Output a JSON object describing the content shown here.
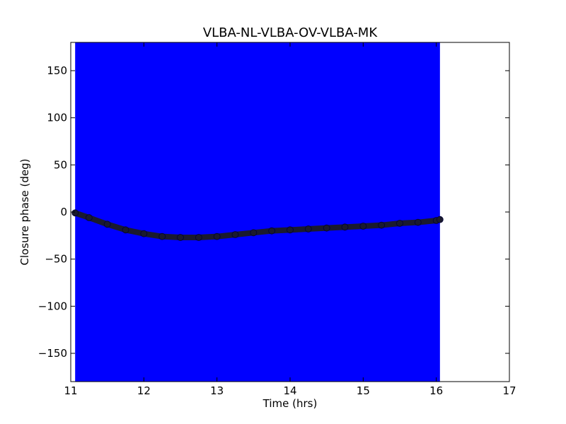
{
  "chart_data": {
    "type": "scatter",
    "title": "VLBA-NL-VLBA-OV-VLBA-MK",
    "xlabel": "Time (hrs)",
    "ylabel": "Closure phase (deg)",
    "xlim": [
      11,
      17
    ],
    "ylim": [
      -180,
      180
    ],
    "xticks": [
      11,
      12,
      13,
      14,
      15,
      16,
      17
    ],
    "xtick_labels": [
      "11",
      "12",
      "13",
      "14",
      "15",
      "16",
      "17"
    ],
    "yticks": [
      150,
      100,
      50,
      0,
      -50,
      -100,
      -150
    ],
    "ytick_labels": [
      "150",
      "100",
      "50",
      "0",
      "−50",
      "−100",
      "−150"
    ],
    "grid": false,
    "legend": "none",
    "shaded_band": {
      "x_start": 11.06,
      "x_end": 16.05,
      "y_range": [
        -180,
        180
      ],
      "color": "#0000ff"
    },
    "series": [
      {
        "marker_color": "#1a1a2e",
        "x": [
          11.06,
          11.25,
          11.5,
          11.75,
          12.0,
          12.25,
          12.5,
          12.75,
          13.0,
          13.25,
          13.5,
          13.75,
          14.0,
          14.25,
          14.5,
          14.75,
          15.0,
          15.25,
          15.5,
          15.75,
          16.0,
          16.05
        ],
        "y": [
          -1,
          -6,
          -13,
          -19,
          -23,
          -26,
          -27,
          -27,
          -26,
          -24,
          -22,
          -20,
          -19,
          -18,
          -17,
          -16,
          -15,
          -14,
          -12,
          -11,
          -9,
          -8
        ]
      }
    ]
  }
}
